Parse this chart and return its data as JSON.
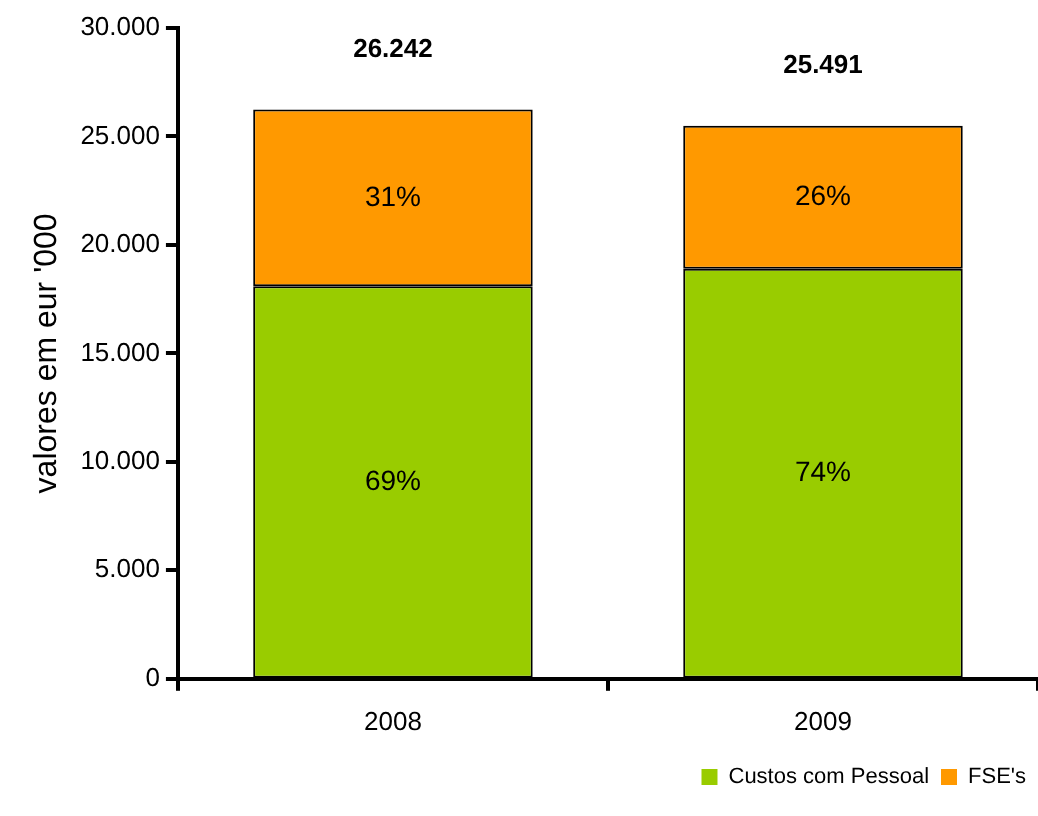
{
  "chart_data": {
    "type": "bar",
    "stacked": true,
    "ylabel": "valores em eur '000",
    "categories": [
      "2008",
      "2009"
    ],
    "series": [
      {
        "name": "Custos com Pessoal",
        "color": "#99cc00",
        "values": [
          18100,
          18900
        ]
      },
      {
        "name": "FSE's",
        "color": "#ff9900",
        "values": [
          8142,
          6591
        ]
      }
    ],
    "annotations": [
      "69%",
      "74%",
      "31%",
      "26%"
    ],
    "totals": [
      "26.242",
      "25.491"
    ],
    "ylim": [
      0,
      30000
    ],
    "yticks": [
      {
        "value": 0,
        "label": "0"
      },
      {
        "value": 5000,
        "label": "5.000"
      },
      {
        "value": 10000,
        "label": "10.000"
      },
      {
        "value": 15000,
        "label": "15.000"
      },
      {
        "value": 20000,
        "label": "20.000"
      },
      {
        "value": 25000,
        "label": "25.000"
      },
      {
        "value": 30000,
        "label": "30.000"
      }
    ],
    "grid": false,
    "legend": "bottom right"
  }
}
